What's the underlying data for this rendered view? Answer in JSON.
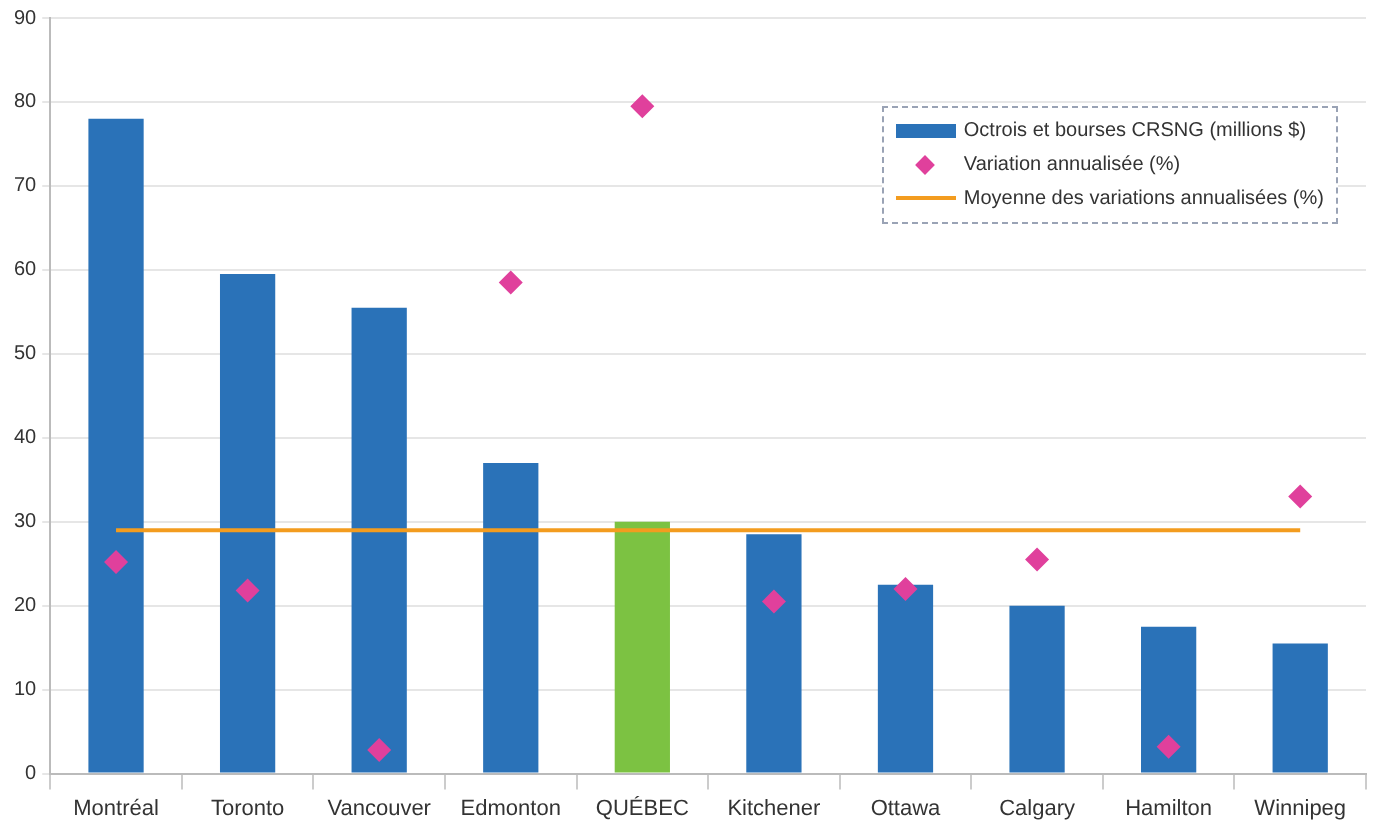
{
  "chart_data": {
    "type": "bar",
    "categories": [
      "Montréal",
      "Toronto",
      "Vancouver",
      "Edmonton",
      "QUÉBEC",
      "Kitchener",
      "Ottawa",
      "Calgary",
      "Hamilton",
      "Winnipeg"
    ],
    "series": [
      {
        "name": "Octrois et bourses CRSNG (millions $)",
        "color": "#2a72b8",
        "colors": [
          "#2a72b8",
          "#2a72b8",
          "#2a72b8",
          "#2a72b8",
          "#7cc242",
          "#2a72b8",
          "#2a72b8",
          "#2a72b8",
          "#2a72b8",
          "#2a72b8"
        ],
        "values": [
          78,
          59.5,
          55.5,
          37,
          30,
          28.5,
          22.5,
          20,
          17.5,
          15.5
        ]
      },
      {
        "name": "Variation annualisée (%)",
        "type": "scatter",
        "marker": "diamond",
        "color": "#e0409c",
        "x": [
          "Montréal",
          "Toronto",
          "Vancouver",
          "Edmonton",
          "QUÉBEC",
          "Kitchener",
          "Ottawa",
          "Calgary",
          "Hamilton",
          "Winnipeg"
        ],
        "values": [
          25.2,
          21.8,
          2.8,
          58.5,
          79.5,
          20.5,
          22,
          25.5,
          3.2,
          33
        ]
      },
      {
        "name": "Moyenne des variations annualisées (%)",
        "type": "line",
        "marker": "none",
        "color": "#f39c1f",
        "values": [
          29,
          29,
          29,
          29,
          29,
          29,
          29,
          29,
          29,
          29
        ]
      }
    ],
    "ylim": [
      0,
      90
    ],
    "yticks": [
      0,
      10,
      20,
      30,
      40,
      50,
      60,
      70,
      80,
      90
    ],
    "grid": "y",
    "legend": "top right"
  }
}
